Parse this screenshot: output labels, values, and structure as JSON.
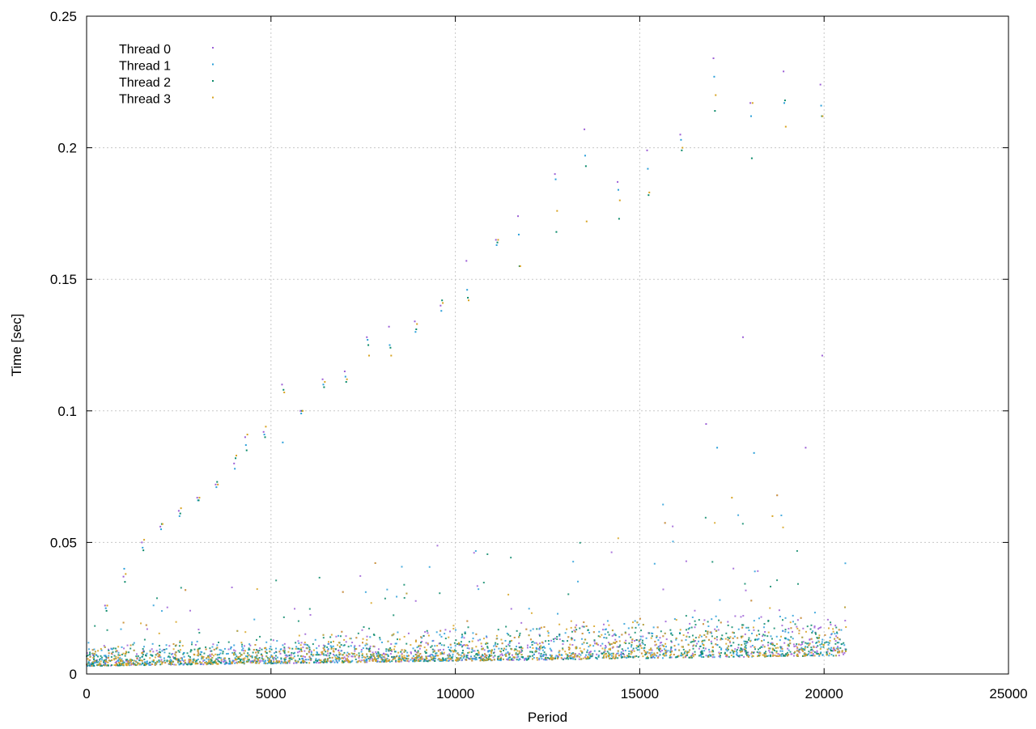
{
  "chart_data": {
    "type": "scatter",
    "title": "",
    "xlabel": "Period",
    "ylabel": "Time [sec]",
    "xlim": [
      0,
      25000
    ],
    "ylim": [
      0,
      0.25
    ],
    "xticks": [
      0,
      5000,
      10000,
      15000,
      20000,
      25000
    ],
    "xtick_labels": [
      "0",
      "5000",
      "10000",
      "15000",
      "20000",
      "25000"
    ],
    "yticks": [
      0,
      0.05,
      0.1,
      0.15,
      0.2,
      0.25
    ],
    "ytick_labels": [
      "0",
      "0.05",
      "0.1",
      "0.15",
      "0.2",
      "0.25"
    ],
    "grid": true,
    "legend_position": "top-left",
    "series": [
      {
        "name": "Thread 0",
        "color": "#9c5fd6",
        "points": [
          [
            500,
            0.026
          ],
          [
            1000,
            0.037
          ],
          [
            1500,
            0.05
          ],
          [
            2000,
            0.056
          ],
          [
            2500,
            0.062
          ],
          [
            3000,
            0.067
          ],
          [
            3500,
            0.072
          ],
          [
            4000,
            0.08
          ],
          [
            4300,
            0.09
          ],
          [
            4800,
            0.092
          ],
          [
            5300,
            0.11
          ],
          [
            5800,
            0.1
          ],
          [
            6400,
            0.112
          ],
          [
            7000,
            0.115
          ],
          [
            7600,
            0.128
          ],
          [
            8200,
            0.132
          ],
          [
            8900,
            0.134
          ],
          [
            9600,
            0.14
          ],
          [
            10300,
            0.157
          ],
          [
            11100,
            0.165
          ],
          [
            11700,
            0.174
          ],
          [
            12700,
            0.19
          ],
          [
            13500,
            0.207
          ],
          [
            14400,
            0.187
          ],
          [
            15200,
            0.199
          ],
          [
            16100,
            0.205
          ],
          [
            17000,
            0.234
          ],
          [
            18000,
            0.217
          ],
          [
            18900,
            0.229
          ],
          [
            19900,
            0.224
          ],
          [
            17800,
            0.128
          ],
          [
            19950,
            0.121
          ],
          [
            16800,
            0.095
          ],
          [
            19500,
            0.086
          ]
        ]
      },
      {
        "name": "Thread 1",
        "color": "#2a9fd9",
        "points": [
          [
            520,
            0.025
          ],
          [
            1020,
            0.04
          ],
          [
            1520,
            0.048
          ],
          [
            2020,
            0.055
          ],
          [
            2520,
            0.06
          ],
          [
            3020,
            0.066
          ],
          [
            3520,
            0.071
          ],
          [
            4020,
            0.078
          ],
          [
            4320,
            0.087
          ],
          [
            4820,
            0.091
          ],
          [
            5320,
            0.088
          ],
          [
            5820,
            0.099
          ],
          [
            6420,
            0.11
          ],
          [
            7020,
            0.113
          ],
          [
            7620,
            0.127
          ],
          [
            8220,
            0.125
          ],
          [
            8920,
            0.13
          ],
          [
            9620,
            0.138
          ],
          [
            10320,
            0.146
          ],
          [
            11120,
            0.163
          ],
          [
            11720,
            0.167
          ],
          [
            12720,
            0.188
          ],
          [
            13520,
            0.197
          ],
          [
            14420,
            0.184
          ],
          [
            15220,
            0.192
          ],
          [
            16120,
            0.203
          ],
          [
            17020,
            0.227
          ],
          [
            18020,
            0.212
          ],
          [
            18920,
            0.217
          ],
          [
            19920,
            0.216
          ],
          [
            17100,
            0.086
          ],
          [
            18100,
            0.084
          ]
        ]
      },
      {
        "name": "Thread 2",
        "color": "#0a8a6a",
        "points": [
          [
            540,
            0.024
          ],
          [
            1040,
            0.035
          ],
          [
            1540,
            0.047
          ],
          [
            2040,
            0.057
          ],
          [
            2540,
            0.061
          ],
          [
            3040,
            0.066
          ],
          [
            3540,
            0.073
          ],
          [
            4040,
            0.082
          ],
          [
            4340,
            0.085
          ],
          [
            4840,
            0.09
          ],
          [
            5340,
            0.108
          ],
          [
            5840,
            0.1
          ],
          [
            6440,
            0.109
          ],
          [
            7040,
            0.111
          ],
          [
            7640,
            0.125
          ],
          [
            8240,
            0.124
          ],
          [
            8940,
            0.131
          ],
          [
            9640,
            0.142
          ],
          [
            10340,
            0.143
          ],
          [
            11140,
            0.164
          ],
          [
            11740,
            0.155
          ],
          [
            12740,
            0.168
          ],
          [
            13540,
            0.193
          ],
          [
            14440,
            0.173
          ],
          [
            15240,
            0.182
          ],
          [
            16140,
            0.199
          ],
          [
            17040,
            0.214
          ],
          [
            18040,
            0.196
          ],
          [
            18940,
            0.218
          ],
          [
            19940,
            0.212
          ]
        ]
      },
      {
        "name": "Thread 3",
        "color": "#d7a321",
        "points": [
          [
            560,
            0.026
          ],
          [
            1060,
            0.038
          ],
          [
            1560,
            0.051
          ],
          [
            2060,
            0.057
          ],
          [
            2560,
            0.063
          ],
          [
            3060,
            0.067
          ],
          [
            3560,
            0.072
          ],
          [
            4060,
            0.083
          ],
          [
            4360,
            0.091
          ],
          [
            4860,
            0.094
          ],
          [
            5360,
            0.107
          ],
          [
            5860,
            0.1
          ],
          [
            6460,
            0.111
          ],
          [
            7060,
            0.112
          ],
          [
            7660,
            0.121
          ],
          [
            8260,
            0.121
          ],
          [
            8960,
            0.133
          ],
          [
            9660,
            0.141
          ],
          [
            10360,
            0.142
          ],
          [
            11160,
            0.165
          ],
          [
            11760,
            0.155
          ],
          [
            12760,
            0.176
          ],
          [
            13560,
            0.172
          ],
          [
            14460,
            0.18
          ],
          [
            15260,
            0.183
          ],
          [
            16160,
            0.2
          ],
          [
            17060,
            0.22
          ],
          [
            18060,
            0.217
          ],
          [
            18960,
            0.208
          ],
          [
            19960,
            0.212
          ],
          [
            17500,
            0.067
          ],
          [
            18600,
            0.06
          ]
        ]
      }
    ],
    "dense_band": {
      "x_range": [
        0,
        20600
      ],
      "note_free": true,
      "points_per_series": 900
    }
  }
}
